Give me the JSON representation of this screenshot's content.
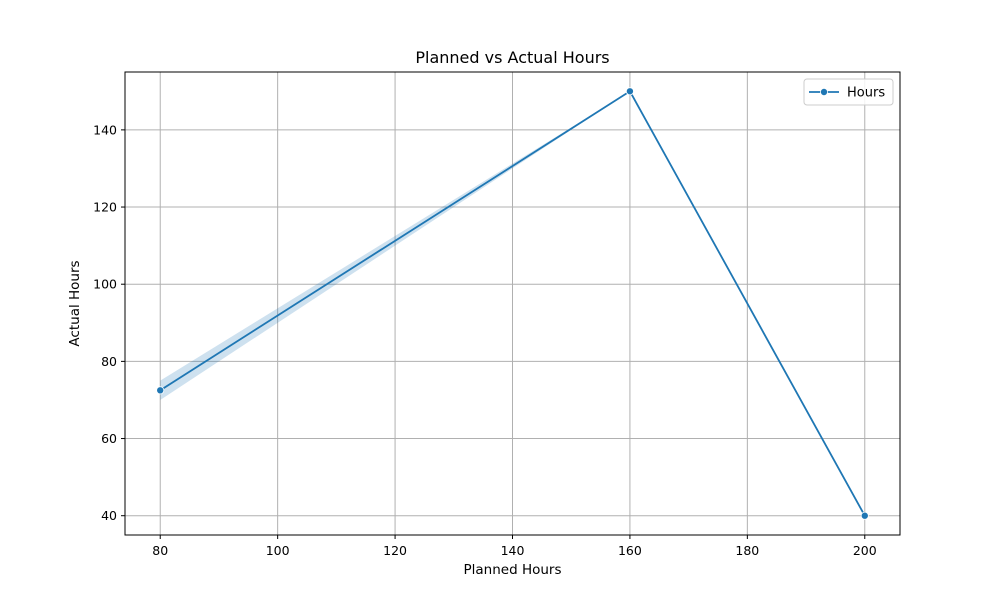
{
  "chart_data": {
    "type": "line",
    "title": "Planned vs Actual Hours",
    "xlabel": "Planned Hours",
    "ylabel": "Actual Hours",
    "xlim": [
      74,
      206
    ],
    "ylim": [
      35,
      155
    ],
    "xticks": [
      80,
      100,
      120,
      140,
      160,
      180,
      200
    ],
    "yticks": [
      40,
      60,
      80,
      100,
      120,
      140
    ],
    "grid": true,
    "legend_position": "top-right",
    "series": [
      {
        "name": "Hours",
        "color": "#1f77b4",
        "marker": "circle",
        "x": [
          80,
          160,
          200
        ],
        "y": [
          72.5,
          150,
          40
        ],
        "ci_lower": [
          70,
          150,
          40
        ],
        "ci_upper": [
          75,
          150,
          40
        ]
      }
    ]
  }
}
